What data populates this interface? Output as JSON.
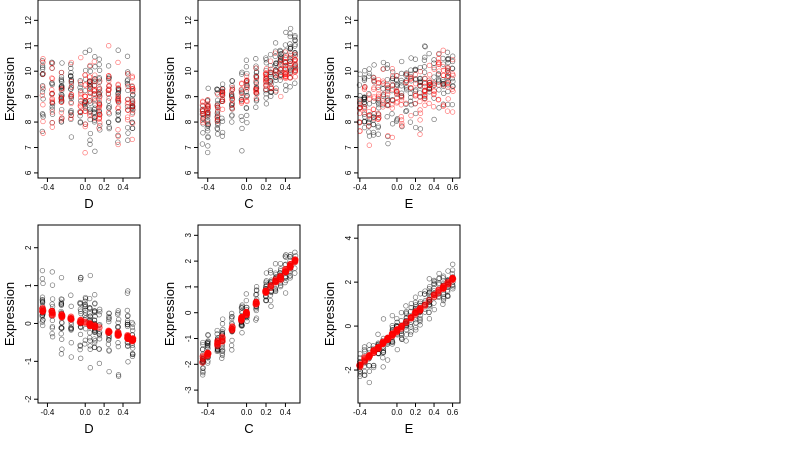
{
  "chart_data": [
    {
      "type": "scatter",
      "xlabel": "D",
      "ylabel": "Expression",
      "xlim": [
        -0.5,
        0.58
      ],
      "ylim": [
        5.8,
        12.8
      ],
      "xticks": [
        -0.4,
        0,
        0.2,
        0.4
      ],
      "yticks": [
        6,
        7,
        8,
        9,
        10,
        11,
        12
      ],
      "levels": [
        -0.45,
        -0.35,
        -0.25,
        -0.15,
        -0.05,
        0.0,
        0.05,
        0.1,
        0.15,
        0.25,
        0.35,
        0.45,
        0.5
      ],
      "series": [
        {
          "color": "#000000",
          "fit": {
            "a": 9.0,
            "b": -0.5
          },
          "spread": 1.6,
          "n": 220
        },
        {
          "color": "#ff0000",
          "fit": {
            "a": 9.0,
            "b": -0.5
          },
          "spread": 1.3,
          "n": 160
        }
      ]
    },
    {
      "type": "scatter",
      "xlabel": "C",
      "ylabel": "Expression",
      "xlim": [
        -0.5,
        0.55
      ],
      "ylim": [
        5.8,
        12.8
      ],
      "xticks": [
        -0.4,
        0,
        0.2,
        0.4
      ],
      "yticks": [
        6,
        7,
        8,
        9,
        10,
        11,
        12
      ],
      "levels": [
        -0.45,
        -0.4,
        -0.3,
        -0.25,
        -0.15,
        -0.05,
        0.0,
        0.1,
        0.2,
        0.25,
        0.3,
        0.35,
        0.4,
        0.45,
        0.5
      ],
      "series": [
        {
          "color": "#000000",
          "fit": {
            "a": 9.2,
            "b": 2.5
          },
          "spread": 1.1,
          "n": 230
        },
        {
          "color": "#ff0000",
          "fit": {
            "a": 9.3,
            "b": 2.0
          },
          "spread": 0.7,
          "n": 150
        }
      ]
    },
    {
      "type": "scatter",
      "xlabel": "E",
      "ylabel": "Expression",
      "xlim": [
        -0.42,
        0.68
      ],
      "ylim": [
        5.8,
        12.8
      ],
      "xticks": [
        -0.4,
        0,
        0.2,
        0.4,
        0.6
      ],
      "yticks": [
        6,
        7,
        8,
        9,
        10,
        11,
        12
      ],
      "levels": [
        -0.4,
        -0.35,
        -0.3,
        -0.25,
        -0.2,
        -0.15,
        -0.1,
        -0.05,
        0.0,
        0.05,
        0.1,
        0.15,
        0.2,
        0.25,
        0.3,
        0.35,
        0.4,
        0.45,
        0.5,
        0.55,
        0.6
      ],
      "series": [
        {
          "color": "#000000",
          "fit": {
            "a": 9.1,
            "b": 1.2
          },
          "spread": 1.4,
          "n": 230
        },
        {
          "color": "#ff0000",
          "fit": {
            "a": 9.0,
            "b": 1.0
          },
          "spread": 1.1,
          "n": 170
        }
      ]
    },
    {
      "type": "scatter",
      "xlabel": "D",
      "ylabel": "Expression",
      "xlim": [
        -0.5,
        0.58
      ],
      "ylim": [
        -2.1,
        2.6
      ],
      "xticks": [
        -0.4,
        0,
        0.2,
        0.4
      ],
      "yticks": [
        -2,
        -1,
        0,
        1,
        2
      ],
      "levels": [
        -0.45,
        -0.35,
        -0.25,
        -0.15,
        -0.05,
        0.0,
        0.05,
        0.1,
        0.15,
        0.25,
        0.35,
        0.45,
        0.5
      ],
      "series": [
        {
          "color": "#000000",
          "fit": {
            "a": 0.0,
            "b": -0.8
          },
          "spread": 0.9,
          "n": 230
        },
        {
          "color": "#ff0000",
          "fit": {
            "a": 0.0,
            "b": -0.8
          },
          "spread": 0.06,
          "n": 90,
          "line": true
        }
      ]
    },
    {
      "type": "scatter",
      "xlabel": "C",
      "ylabel": "Expression",
      "xlim": [
        -0.5,
        0.55
      ],
      "ylim": [
        -3.5,
        3.4
      ],
      "xticks": [
        -0.4,
        0,
        0.2,
        0.4
      ],
      "yticks": [
        -3,
        -2,
        -1,
        0,
        1,
        2,
        3
      ],
      "levels": [
        -0.45,
        -0.4,
        -0.3,
        -0.25,
        -0.15,
        -0.05,
        0.0,
        0.1,
        0.2,
        0.25,
        0.3,
        0.35,
        0.4,
        0.45,
        0.5
      ],
      "series": [
        {
          "color": "#000000",
          "fit": {
            "a": 0.0,
            "b": 4.0
          },
          "spread": 0.7,
          "n": 240
        },
        {
          "color": "#ff0000",
          "fit": {
            "a": 0.0,
            "b": 4.0
          },
          "spread": 0.1,
          "n": 90,
          "line": true
        }
      ]
    },
    {
      "type": "scatter",
      "xlabel": "E",
      "ylabel": "Expression",
      "xlim": [
        -0.42,
        0.68
      ],
      "ylim": [
        -3.5,
        4.6
      ],
      "xticks": [
        -0.4,
        0,
        0.2,
        0.4,
        0.6
      ],
      "yticks": [
        -2,
        0,
        2,
        4
      ],
      "levels": [
        -0.4,
        -0.35,
        -0.3,
        -0.25,
        -0.2,
        -0.15,
        -0.1,
        -0.05,
        0.0,
        0.05,
        0.1,
        0.15,
        0.2,
        0.25,
        0.3,
        0.35,
        0.4,
        0.45,
        0.5,
        0.55,
        0.6
      ],
      "series": [
        {
          "color": "#000000",
          "fit": {
            "a": -0.2,
            "b": 3.9
          },
          "spread": 0.8,
          "n": 260
        },
        {
          "color": "#ff0000",
          "fit": {
            "a": -0.2,
            "b": 3.9
          },
          "spread": 0.08,
          "n": 110,
          "line": true
        }
      ]
    }
  ]
}
